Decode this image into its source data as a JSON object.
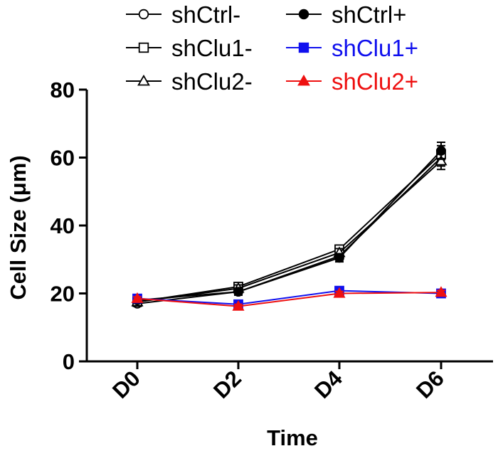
{
  "chart_data": {
    "type": "line",
    "title": "",
    "xlabel": "Time",
    "ylabel": "Cell Size (μm)",
    "categories": [
      "D0",
      "D2",
      "D4",
      "D6"
    ],
    "ylim": [
      0,
      80
    ],
    "yticks": [
      0,
      20,
      40,
      60,
      80
    ],
    "grid": false,
    "legend_position": "top",
    "series": [
      {
        "name": "shCtrl-",
        "values": [
          17.0,
          20.5,
          31.0,
          60.0
        ],
        "errors": [
          0.8,
          1.0,
          1.2,
          2.5
        ],
        "color": "#000000",
        "marker": "circle-open"
      },
      {
        "name": "shClu1-",
        "values": [
          17.5,
          22.0,
          33.0,
          61.0
        ],
        "errors": [
          0.8,
          1.0,
          1.2,
          2.5
        ],
        "color": "#000000",
        "marker": "square-open"
      },
      {
        "name": "shClu2-",
        "values": [
          17.5,
          21.5,
          32.0,
          59.0
        ],
        "errors": [
          0.8,
          1.0,
          1.2,
          2.5
        ],
        "color": "#000000",
        "marker": "triangle-open"
      },
      {
        "name": "shCtrl+",
        "values": [
          18.0,
          20.5,
          30.5,
          62.0
        ],
        "errors": [
          0.8,
          1.0,
          1.2,
          2.5
        ],
        "color": "#000000",
        "marker": "circle-filled"
      },
      {
        "name": "shClu1+",
        "values": [
          18.5,
          16.8,
          20.8,
          20.0
        ],
        "errors": [
          0.5,
          0.6,
          0.6,
          0.6
        ],
        "color": "#1010ee",
        "marker": "square-filled"
      },
      {
        "name": "shClu2+",
        "values": [
          18.5,
          16.2,
          20.0,
          20.3
        ],
        "errors": [
          0.5,
          0.6,
          0.6,
          0.6
        ],
        "color": "#ee1010",
        "marker": "triangle-filled"
      }
    ]
  }
}
